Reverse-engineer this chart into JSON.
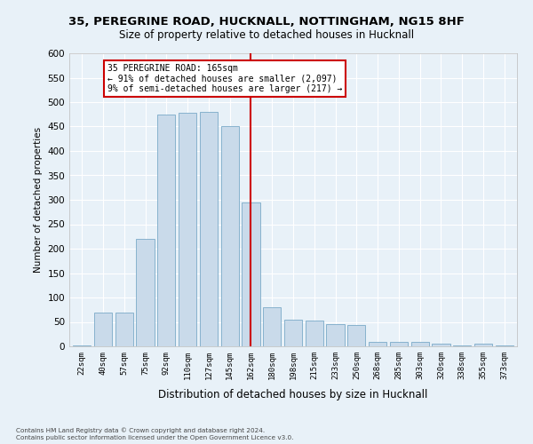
{
  "title_line1": "35, PEREGRINE ROAD, HUCKNALL, NOTTINGHAM, NG15 8HF",
  "title_line2": "Size of property relative to detached houses in Hucknall",
  "xlabel": "Distribution of detached houses by size in Hucknall",
  "ylabel": "Number of detached properties",
  "categories": [
    "22sqm",
    "40sqm",
    "57sqm",
    "75sqm",
    "92sqm",
    "110sqm",
    "127sqm",
    "145sqm",
    "162sqm",
    "180sqm",
    "198sqm",
    "215sqm",
    "233sqm",
    "250sqm",
    "268sqm",
    "285sqm",
    "303sqm",
    "320sqm",
    "338sqm",
    "355sqm",
    "373sqm"
  ],
  "values": [
    2,
    70,
    70,
    220,
    475,
    478,
    480,
    450,
    295,
    80,
    55,
    53,
    46,
    43,
    10,
    10,
    10,
    5,
    2,
    5,
    2
  ],
  "bar_color": "#c9daea",
  "bar_edge_color": "#7aaac8",
  "background_color": "#e8f1f8",
  "grid_color": "#ffffff",
  "vline_color": "#cc0000",
  "vline_idx": 8,
  "annotation_text": "35 PEREGRINE ROAD: 165sqm\n← 91% of detached houses are smaller (2,097)\n9% of semi-detached houses are larger (217) →",
  "annotation_box_edgecolor": "#cc0000",
  "footer_line1": "Contains HM Land Registry data © Crown copyright and database right 2024.",
  "footer_line2": "Contains public sector information licensed under the Open Government Licence v3.0.",
  "ylim": [
    0,
    600
  ],
  "yticks": [
    0,
    50,
    100,
    150,
    200,
    250,
    300,
    350,
    400,
    450,
    500,
    550,
    600
  ]
}
